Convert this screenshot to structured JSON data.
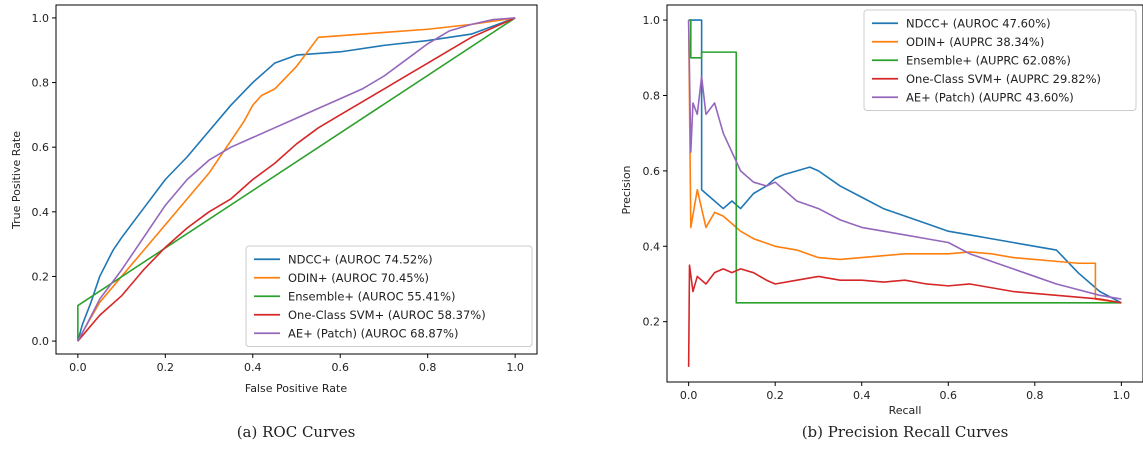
{
  "chart_data": [
    {
      "type": "line",
      "caption": "(a) ROC Curves",
      "xlabel": "False Positive Rate",
      "ylabel": "True Positive Rate",
      "xlim": [
        -0.05,
        1.05
      ],
      "ylim": [
        -0.04,
        1.04
      ],
      "xticks": [
        "0.0",
        "0.2",
        "0.4",
        "0.6",
        "0.8",
        "1.0"
      ],
      "yticks": [
        "0.0",
        "0.2",
        "0.4",
        "0.6",
        "0.8",
        "1.0"
      ],
      "legend_position": "lower-right",
      "grid": false,
      "series": [
        {
          "name": "NDCC+ (AUROC 74.52%)",
          "color": "#1f77b4",
          "points": [
            [
              0,
              0
            ],
            [
              0.01,
              0.05
            ],
            [
              0.03,
              0.12
            ],
            [
              0.05,
              0.2
            ],
            [
              0.08,
              0.28
            ],
            [
              0.1,
              0.32
            ],
            [
              0.15,
              0.41
            ],
            [
              0.2,
              0.5
            ],
            [
              0.25,
              0.57
            ],
            [
              0.3,
              0.65
            ],
            [
              0.35,
              0.73
            ],
            [
              0.4,
              0.8
            ],
            [
              0.45,
              0.86
            ],
            [
              0.5,
              0.885
            ],
            [
              0.6,
              0.895
            ],
            [
              0.7,
              0.915
            ],
            [
              0.8,
              0.93
            ],
            [
              0.9,
              0.95
            ],
            [
              1,
              1
            ]
          ]
        },
        {
          "name": "ODIN+ (AUROC 70.45%)",
          "color": "#ff7f0e",
          "points": [
            [
              0,
              0
            ],
            [
              0.02,
              0.05
            ],
            [
              0.05,
              0.12
            ],
            [
              0.1,
              0.2
            ],
            [
              0.15,
              0.28
            ],
            [
              0.2,
              0.36
            ],
            [
              0.25,
              0.44
            ],
            [
              0.3,
              0.52
            ],
            [
              0.35,
              0.62
            ],
            [
              0.38,
              0.68
            ],
            [
              0.4,
              0.73
            ],
            [
              0.42,
              0.76
            ],
            [
              0.45,
              0.78
            ],
            [
              0.5,
              0.85
            ],
            [
              0.55,
              0.94
            ],
            [
              0.6,
              0.945
            ],
            [
              0.7,
              0.955
            ],
            [
              0.8,
              0.965
            ],
            [
              0.9,
              0.98
            ],
            [
              1,
              1
            ]
          ]
        },
        {
          "name": "Ensemble+ (AUROC 55.41%)",
          "color": "#2ca02c",
          "points": [
            [
              0,
              0
            ],
            [
              0,
              0.11
            ],
            [
              1,
              1
            ]
          ]
        },
        {
          "name": "One-Class SVM+ (AUROC 58.37%)",
          "color": "#d62728",
          "points": [
            [
              0,
              0
            ],
            [
              0.05,
              0.08
            ],
            [
              0.1,
              0.14
            ],
            [
              0.15,
              0.22
            ],
            [
              0.2,
              0.29
            ],
            [
              0.25,
              0.35
            ],
            [
              0.3,
              0.4
            ],
            [
              0.35,
              0.44
            ],
            [
              0.4,
              0.5
            ],
            [
              0.45,
              0.55
            ],
            [
              0.5,
              0.61
            ],
            [
              0.55,
              0.66
            ],
            [
              0.6,
              0.7
            ],
            [
              0.65,
              0.74
            ],
            [
              0.7,
              0.78
            ],
            [
              0.75,
              0.82
            ],
            [
              0.8,
              0.86
            ],
            [
              0.85,
              0.9
            ],
            [
              0.9,
              0.94
            ],
            [
              0.95,
              0.97
            ],
            [
              1,
              1
            ]
          ]
        },
        {
          "name": "AE+ (Patch) (AUROC 68.87%)",
          "color": "#9467bd",
          "points": [
            [
              0,
              0
            ],
            [
              0.02,
              0.05
            ],
            [
              0.05,
              0.13
            ],
            [
              0.1,
              0.22
            ],
            [
              0.15,
              0.32
            ],
            [
              0.2,
              0.42
            ],
            [
              0.25,
              0.5
            ],
            [
              0.3,
              0.56
            ],
            [
              0.35,
              0.6
            ],
            [
              0.4,
              0.63
            ],
            [
              0.45,
              0.66
            ],
            [
              0.5,
              0.69
            ],
            [
              0.55,
              0.72
            ],
            [
              0.6,
              0.75
            ],
            [
              0.65,
              0.78
            ],
            [
              0.7,
              0.82
            ],
            [
              0.75,
              0.87
            ],
            [
              0.8,
              0.92
            ],
            [
              0.85,
              0.96
            ],
            [
              0.9,
              0.98
            ],
            [
              0.95,
              0.995
            ],
            [
              1,
              1
            ]
          ]
        }
      ]
    },
    {
      "type": "line",
      "caption": "(b) Precision Recall Curves",
      "xlabel": "Recall",
      "ylabel": "Precision",
      "xlim": [
        -0.05,
        1.05
      ],
      "ylim": [
        0.04,
        1.04
      ],
      "xticks": [
        "0.0",
        "0.2",
        "0.4",
        "0.6",
        "0.8",
        "1.0"
      ],
      "yticks": [
        "0.2",
        "0.4",
        "0.6",
        "0.8",
        "1.0"
      ],
      "legend_position": "upper-right",
      "grid": false,
      "series": [
        {
          "name": "NDCC+ (AUROC 47.60%)",
          "color": "#1f77b4",
          "points": [
            [
              0,
              1
            ],
            [
              0.03,
              1
            ],
            [
              0.03,
              0.55
            ],
            [
              0.05,
              0.53
            ],
            [
              0.08,
              0.5
            ],
            [
              0.1,
              0.52
            ],
            [
              0.12,
              0.5
            ],
            [
              0.15,
              0.54
            ],
            [
              0.18,
              0.56
            ],
            [
              0.2,
              0.58
            ],
            [
              0.22,
              0.59
            ],
            [
              0.25,
              0.6
            ],
            [
              0.28,
              0.61
            ],
            [
              0.3,
              0.6
            ],
            [
              0.35,
              0.56
            ],
            [
              0.4,
              0.53
            ],
            [
              0.45,
              0.5
            ],
            [
              0.5,
              0.48
            ],
            [
              0.55,
              0.46
            ],
            [
              0.6,
              0.44
            ],
            [
              0.65,
              0.43
            ],
            [
              0.7,
              0.42
            ],
            [
              0.75,
              0.41
            ],
            [
              0.8,
              0.4
            ],
            [
              0.85,
              0.39
            ],
            [
              0.9,
              0.33
            ],
            [
              0.95,
              0.28
            ],
            [
              1,
              0.25
            ]
          ]
        },
        {
          "name": "ODIN+ (AUPRC 38.34%)",
          "color": "#ff7f0e",
          "points": [
            [
              0,
              1
            ],
            [
              0.005,
              0.45
            ],
            [
              0.02,
              0.55
            ],
            [
              0.04,
              0.45
            ],
            [
              0.06,
              0.49
            ],
            [
              0.08,
              0.48
            ],
            [
              0.1,
              0.46
            ],
            [
              0.12,
              0.44
            ],
            [
              0.15,
              0.42
            ],
            [
              0.2,
              0.4
            ],
            [
              0.25,
              0.39
            ],
            [
              0.3,
              0.37
            ],
            [
              0.35,
              0.365
            ],
            [
              0.4,
              0.37
            ],
            [
              0.45,
              0.375
            ],
            [
              0.5,
              0.38
            ],
            [
              0.55,
              0.38
            ],
            [
              0.6,
              0.38
            ],
            [
              0.65,
              0.385
            ],
            [
              0.7,
              0.38
            ],
            [
              0.75,
              0.37
            ],
            [
              0.8,
              0.365
            ],
            [
              0.85,
              0.36
            ],
            [
              0.9,
              0.355
            ],
            [
              0.94,
              0.355
            ],
            [
              0.94,
              0.26
            ],
            [
              1,
              0.25
            ]
          ]
        },
        {
          "name": "Ensemble+ (AUPRC 62.08%)",
          "color": "#2ca02c",
          "points": [
            [
              0,
              1
            ],
            [
              0.005,
              1
            ],
            [
              0.005,
              0.9
            ],
            [
              0.03,
              0.9
            ],
            [
              0.03,
              0.915
            ],
            [
              0.11,
              0.915
            ],
            [
              0.11,
              0.25
            ],
            [
              1,
              0.25
            ]
          ]
        },
        {
          "name": "One-Class SVM+ (AUPRC 29.82%)",
          "color": "#d62728",
          "points": [
            [
              0,
              0.08
            ],
            [
              0.002,
              0.35
            ],
            [
              0.01,
              0.28
            ],
            [
              0.02,
              0.32
            ],
            [
              0.04,
              0.3
            ],
            [
              0.06,
              0.33
            ],
            [
              0.08,
              0.34
            ],
            [
              0.1,
              0.33
            ],
            [
              0.12,
              0.34
            ],
            [
              0.15,
              0.33
            ],
            [
              0.18,
              0.31
            ],
            [
              0.2,
              0.3
            ],
            [
              0.25,
              0.31
            ],
            [
              0.3,
              0.32
            ],
            [
              0.35,
              0.31
            ],
            [
              0.4,
              0.31
            ],
            [
              0.45,
              0.305
            ],
            [
              0.5,
              0.31
            ],
            [
              0.55,
              0.3
            ],
            [
              0.6,
              0.295
            ],
            [
              0.65,
              0.3
            ],
            [
              0.7,
              0.29
            ],
            [
              0.75,
              0.28
            ],
            [
              0.8,
              0.275
            ],
            [
              0.85,
              0.27
            ],
            [
              0.9,
              0.265
            ],
            [
              0.95,
              0.26
            ],
            [
              1,
              0.25
            ]
          ]
        },
        {
          "name": "AE+ (Patch) (AUPRC 43.60%)",
          "color": "#9467bd",
          "points": [
            [
              0,
              1
            ],
            [
              0.005,
              0.65
            ],
            [
              0.01,
              0.78
            ],
            [
              0.02,
              0.75
            ],
            [
              0.03,
              0.85
            ],
            [
              0.04,
              0.75
            ],
            [
              0.06,
              0.78
            ],
            [
              0.08,
              0.7
            ],
            [
              0.1,
              0.65
            ],
            [
              0.12,
              0.6
            ],
            [
              0.15,
              0.57
            ],
            [
              0.18,
              0.56
            ],
            [
              0.2,
              0.57
            ],
            [
              0.25,
              0.52
            ],
            [
              0.3,
              0.5
            ],
            [
              0.35,
              0.47
            ],
            [
              0.4,
              0.45
            ],
            [
              0.45,
              0.44
            ],
            [
              0.5,
              0.43
            ],
            [
              0.55,
              0.42
            ],
            [
              0.6,
              0.41
            ],
            [
              0.65,
              0.38
            ],
            [
              0.7,
              0.36
            ],
            [
              0.75,
              0.34
            ],
            [
              0.8,
              0.32
            ],
            [
              0.85,
              0.3
            ],
            [
              0.9,
              0.285
            ],
            [
              0.95,
              0.27
            ],
            [
              1,
              0.26
            ]
          ]
        }
      ]
    }
  ]
}
